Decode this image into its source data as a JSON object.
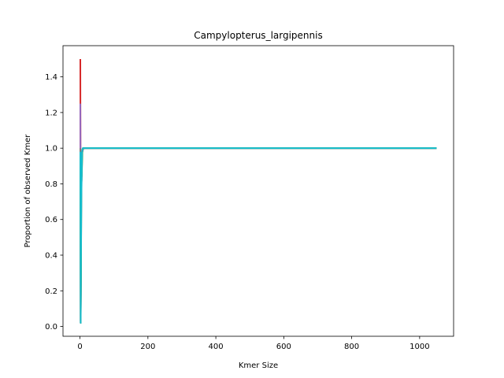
{
  "chart_data": {
    "type": "line",
    "title": "Campylopterus_largipennis",
    "xlabel": "Kmer Size",
    "ylabel": "Proportion of observed Kmer",
    "xlim": [
      -50,
      1100
    ],
    "ylim": [
      -0.055,
      1.575
    ],
    "xticks": [
      0,
      200,
      400,
      600,
      800,
      1000
    ],
    "yticks": [
      0.0,
      0.2,
      0.4,
      0.6,
      0.8,
      1.0,
      1.2,
      1.4
    ],
    "xtick_labels": [
      "0",
      "200",
      "400",
      "600",
      "800",
      "1000"
    ],
    "ytick_labels": [
      "0.0",
      "0.2",
      "0.4",
      "0.6",
      "0.8",
      "1.0",
      "1.2",
      "1.4"
    ],
    "grid": false,
    "series": [
      {
        "color": "#d62728",
        "x": [
          1,
          1.5,
          2,
          3,
          4,
          6,
          10,
          20,
          1050
        ],
        "y": [
          1.5,
          1.05,
          0.03,
          0.5,
          0.9,
          0.98,
          1.0,
          1.0,
          1.0
        ]
      },
      {
        "color": "#9467bd",
        "x": [
          1,
          1.5,
          2,
          3,
          4,
          6,
          10,
          20,
          1050
        ],
        "y": [
          1.25,
          0.95,
          0.02,
          0.45,
          0.88,
          0.97,
          1.0,
          1.0,
          1.0
        ]
      },
      {
        "color": "#7f7f7f",
        "x": [
          1,
          2,
          3,
          4,
          5,
          7,
          10,
          20,
          1050
        ],
        "y": [
          1.0,
          0.02,
          0.3,
          0.8,
          0.82,
          0.99,
          1.0,
          1.0,
          1.0
        ]
      },
      {
        "color": "#2ca02c",
        "x": [
          1,
          2,
          3,
          4,
          5,
          7,
          10,
          20,
          1050
        ],
        "y": [
          0.95,
          0.02,
          0.28,
          0.85,
          0.84,
          0.99,
          1.0,
          1.0,
          1.0
        ]
      },
      {
        "color": "#17becf",
        "x": [
          1,
          2,
          3,
          4,
          5,
          6,
          8,
          12,
          20,
          1050
        ],
        "y": [
          0.98,
          0.02,
          0.4,
          0.72,
          0.83,
          0.98,
          1.0,
          1.0,
          1.0,
          1.0
        ]
      }
    ]
  }
}
